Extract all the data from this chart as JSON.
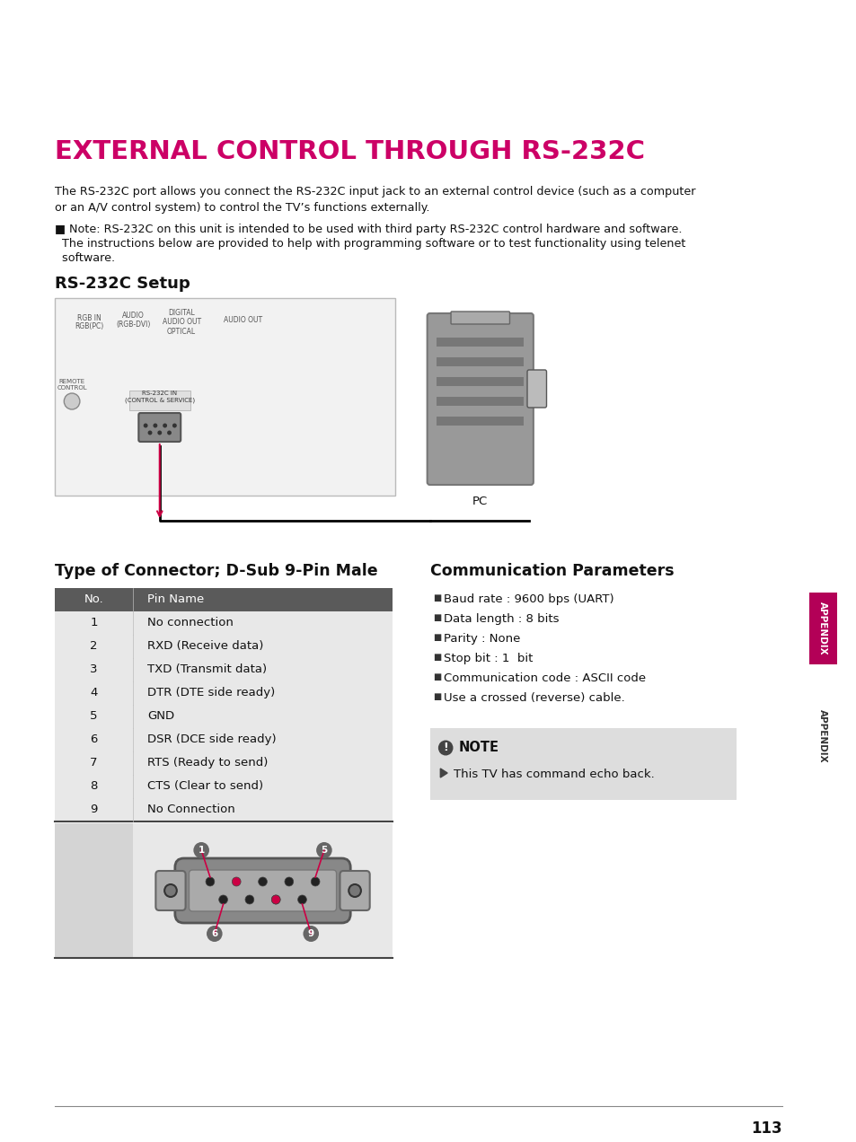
{
  "title": "EXTERNAL CONTROL THROUGH RS-232C",
  "title_color": "#cc0066",
  "body_text1": "The RS-232C port allows you connect the RS-232C input jack to an external control device (such as a computer\nor an A/V control system) to control the TV’s functions externally.",
  "note_bullet_line1": "■ Note: RS-232C on this unit is intended to be used with third party RS-232C control hardware and software.",
  "note_bullet_line2": "  The instructions below are provided to help with programming software or to test functionality using telenet",
  "note_bullet_line3": "  software.",
  "rs232c_setup_title": "RS-232C Setup",
  "connector_title": "Type of Connector; D-Sub 9-Pin Male",
  "comm_title": "Communication Parameters",
  "table_header": [
    "No.",
    "Pin Name"
  ],
  "table_rows": [
    [
      "1",
      "No connection"
    ],
    [
      "2",
      "RXD (Receive data)"
    ],
    [
      "3",
      "TXD (Transmit data)"
    ],
    [
      "4",
      "DTR (DTE side ready)"
    ],
    [
      "5",
      "GND"
    ],
    [
      "6",
      "DSR (DCE side ready)"
    ],
    [
      "7",
      "RTS (Ready to send)"
    ],
    [
      "8",
      "CTS (Clear to send)"
    ],
    [
      "9",
      "No Connection"
    ]
  ],
  "comm_params": [
    "Baud rate : 9600 bps (UART)",
    "Data length : 8 bits",
    "Parity : None",
    "Stop bit : 1  bit",
    "Communication code : ASCII code",
    "Use a crossed (reverse) cable."
  ],
  "note_text": "This TV has command echo back.",
  "appendix_label": "APPENDIX",
  "page_number": "113",
  "bg_color": "#ffffff",
  "table_header_bg": "#5a5a5a",
  "table_header_fg": "#ffffff",
  "table_row_bg": "#e8e8e8",
  "note_box_bg": "#dddddd",
  "tab_color": "#b30057",
  "connector_bg": "#e8e8e8",
  "connector_body_color": "#888888",
  "pin_line_color": "#cc0044"
}
